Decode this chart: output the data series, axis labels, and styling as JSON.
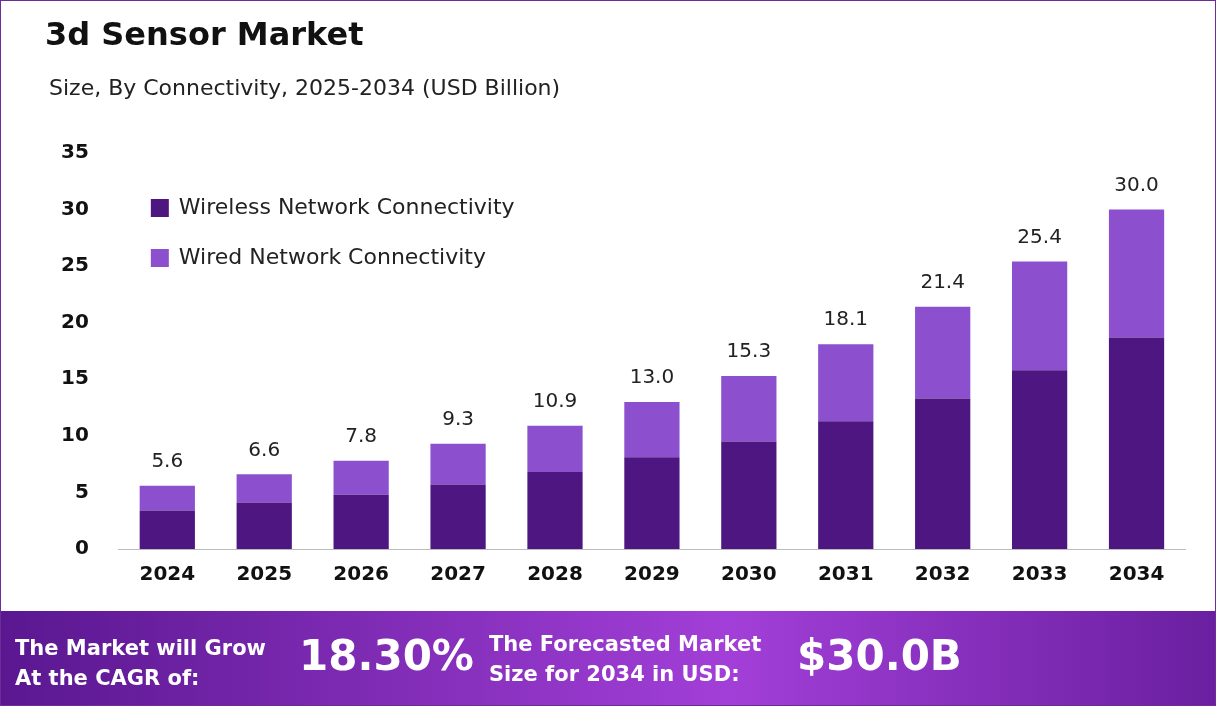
{
  "chart_data": {
    "type": "bar",
    "title": "3d Sensor Market",
    "subtitle": "Size, By Connectivity, 2025-2034 (USD Billion)",
    "categories": [
      "2024",
      "2025",
      "2026",
      "2027",
      "2028",
      "2029",
      "2030",
      "2031",
      "2032",
      "2033",
      "2034"
    ],
    "series": [
      {
        "name": "Wireless Network Connectivity",
        "color": "#4e1680",
        "values": [
          3.4,
          4.1,
          4.8,
          5.7,
          6.8,
          8.1,
          9.5,
          11.3,
          13.3,
          15.8,
          18.7
        ]
      },
      {
        "name": "Wired Network Connectivity",
        "color": "#8c50cf",
        "values": [
          2.2,
          2.5,
          3.0,
          3.6,
          4.1,
          4.9,
          5.8,
          6.8,
          8.1,
          9.6,
          11.3
        ]
      }
    ],
    "stacked": true,
    "totals": [
      "5.6",
      "6.6",
      "7.8",
      "9.3",
      "10.9",
      "13.0",
      "15.3",
      "18.1",
      "21.4",
      "25.4",
      "30.0"
    ],
    "ylim": [
      0,
      35
    ],
    "yticks": [
      0,
      5,
      10,
      15,
      20,
      25,
      30,
      35
    ],
    "grid": false,
    "legend": "top left",
    "annotations": [
      "The Market will Grow At the CAGR of:",
      "18.30%",
      "The Forecasted Market Size for 2034 in USD:",
      "$30.0B"
    ]
  }
}
